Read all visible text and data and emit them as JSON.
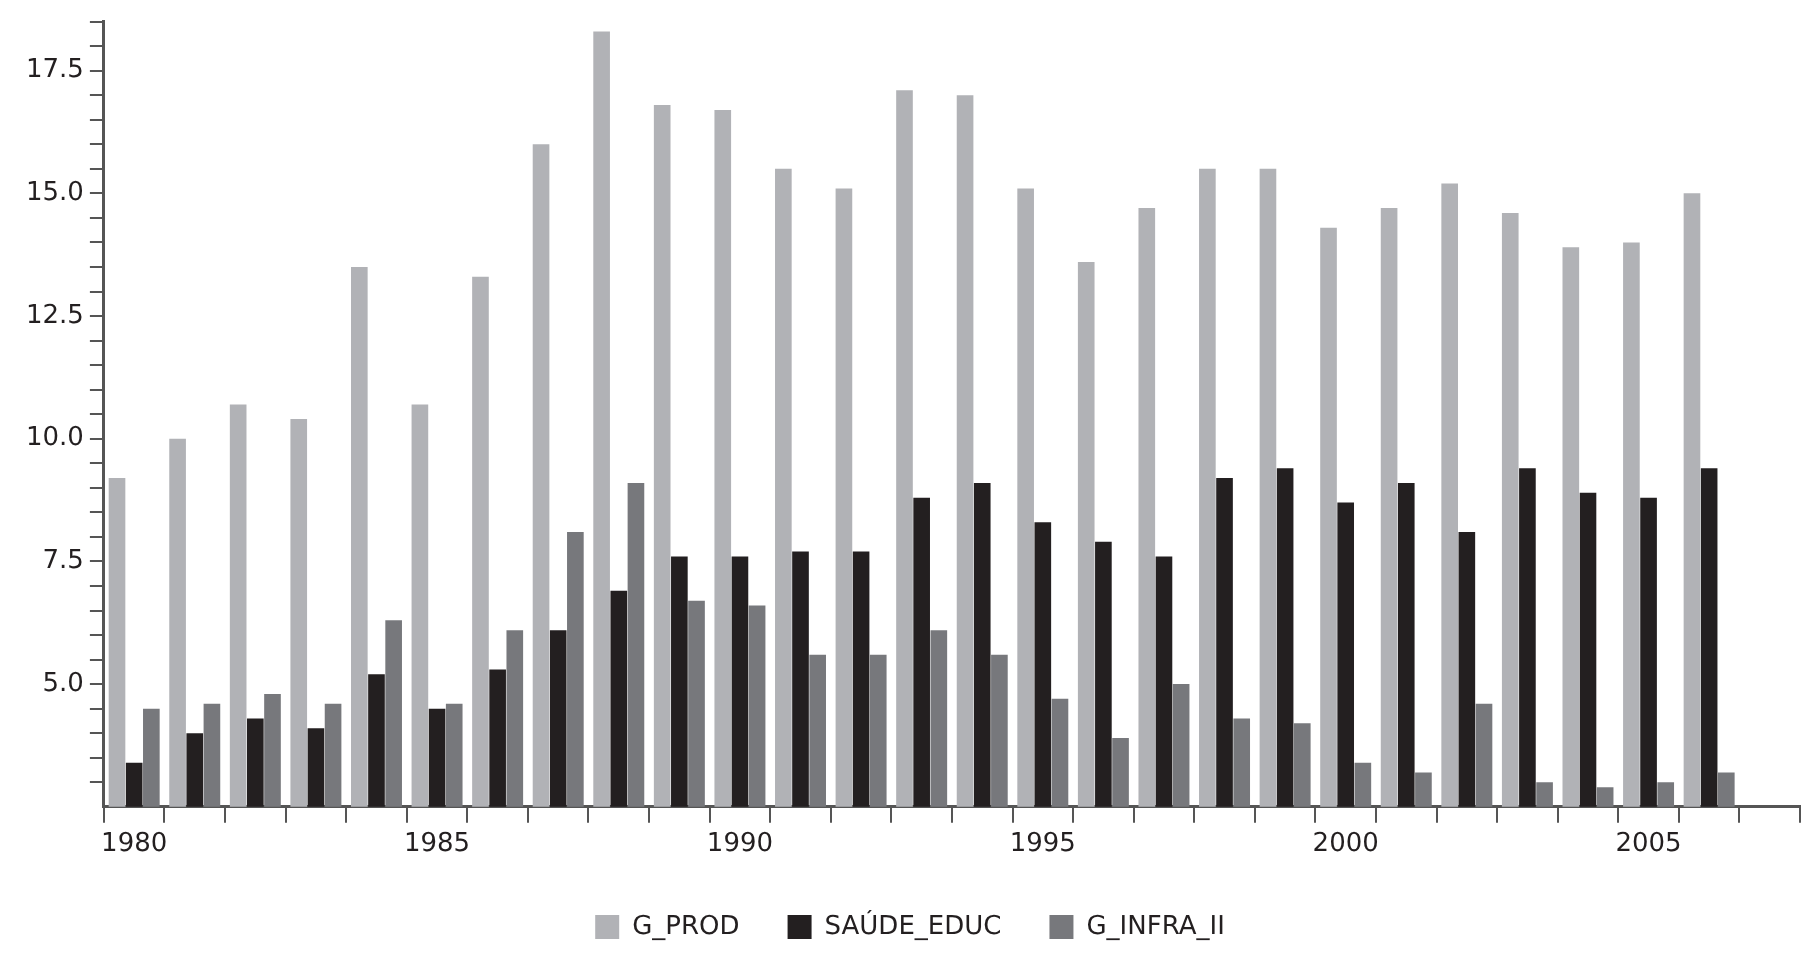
{
  "chart_data": {
    "type": "bar",
    "categories": [
      "1980",
      null,
      null,
      null,
      null,
      "1985",
      null,
      null,
      null,
      null,
      "1990",
      null,
      null,
      null,
      null,
      "1995",
      null,
      null,
      null,
      null,
      "2000",
      null,
      null,
      null,
      null,
      "2005",
      null,
      null
    ],
    "series": [
      {
        "name": "G_PROD",
        "color": "#b1b2b6",
        "values": [
          9.2,
          10.0,
          10.7,
          10.4,
          13.5,
          10.7,
          13.3,
          16.0,
          18.3,
          16.8,
          16.7,
          15.5,
          15.1,
          17.1,
          17.0,
          15.1,
          13.6,
          14.7,
          15.5,
          15.5,
          14.3,
          14.7,
          15.2,
          14.6,
          13.9,
          14.0,
          15.0,
          null
        ]
      },
      {
        "name": "SAÚDE_EDUC",
        "color": "#231f20",
        "values": [
          3.4,
          4.0,
          4.3,
          4.1,
          5.2,
          4.5,
          5.3,
          6.1,
          6.9,
          7.6,
          7.6,
          7.7,
          7.7,
          8.8,
          9.1,
          8.3,
          7.9,
          7.6,
          9.2,
          9.4,
          8.7,
          9.1,
          8.1,
          9.4,
          8.9,
          8.8,
          9.4,
          null
        ]
      },
      {
        "name": "G_INFRA_II",
        "color": "#77787c",
        "values": [
          4.5,
          4.6,
          4.8,
          4.6,
          6.3,
          4.6,
          6.1,
          8.1,
          9.1,
          6.7,
          6.6,
          5.6,
          5.6,
          6.1,
          5.6,
          4.7,
          3.9,
          5.0,
          4.3,
          4.2,
          3.4,
          3.2,
          4.6,
          3.0,
          2.9,
          3.0,
          3.2,
          null
        ]
      }
    ],
    "ylim": [
      2.5,
      18.5
    ],
    "yticks": [
      {
        "value": 3.0,
        "label": null
      },
      {
        "value": 3.5,
        "label": null
      },
      {
        "value": 4.0,
        "label": null
      },
      {
        "value": 4.5,
        "label": null
      },
      {
        "value": 5.0,
        "label": "5.0"
      },
      {
        "value": 5.5,
        "label": null
      },
      {
        "value": 6.0,
        "label": null
      },
      {
        "value": 6.5,
        "label": null
      },
      {
        "value": 7.0,
        "label": null
      },
      {
        "value": 7.5,
        "label": "7.5"
      },
      {
        "value": 8.0,
        "label": null
      },
      {
        "value": 8.5,
        "label": null
      },
      {
        "value": 9.0,
        "label": null
      },
      {
        "value": 9.5,
        "label": null
      },
      {
        "value": 10.0,
        "label": "10.0"
      },
      {
        "value": 10.5,
        "label": null
      },
      {
        "value": 11.0,
        "label": null
      },
      {
        "value": 11.5,
        "label": null
      },
      {
        "value": 12.0,
        "label": null
      },
      {
        "value": 12.5,
        "label": "12.5"
      },
      {
        "value": 13.0,
        "label": null
      },
      {
        "value": 13.5,
        "label": null
      },
      {
        "value": 14.0,
        "label": null
      },
      {
        "value": 14.5,
        "label": null
      },
      {
        "value": 15.0,
        "label": "15.0"
      },
      {
        "value": 15.5,
        "label": null
      },
      {
        "value": 16.0,
        "label": null
      },
      {
        "value": 16.5,
        "label": null
      },
      {
        "value": 17.0,
        "label": null
      },
      {
        "value": 17.5,
        "label": "17.5"
      },
      {
        "value": 18.0,
        "label": null
      },
      {
        "value": 18.5,
        "label": null
      }
    ],
    "grid": false,
    "legend": "bottom"
  }
}
